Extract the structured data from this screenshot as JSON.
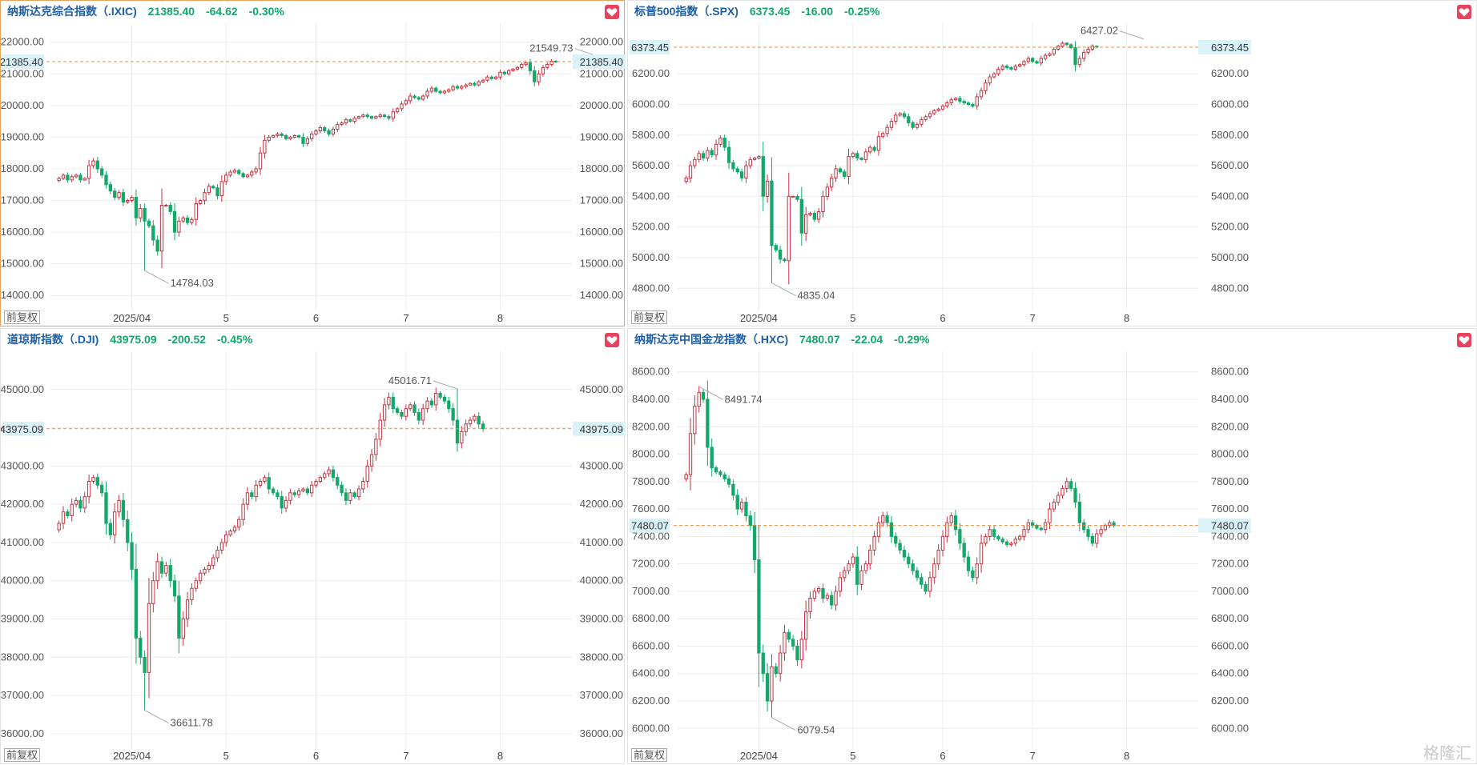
{
  "watermark": "格隆汇",
  "colors": {
    "up": "#c9333f",
    "down": "#13a86a",
    "grid": "#ececec",
    "price_line": "#e8893a",
    "price_tag": "#d9f2f7"
  },
  "buttons": {
    "restore_right": "前复权"
  },
  "panels": [
    {
      "title": "纳斯达克综合指数（.IXIC)",
      "price": "21385.40",
      "change": "-64.62",
      "pct": "-0.30%",
      "current_label": "21385.40",
      "max_label": "21549.73",
      "min_label": "14784.03",
      "x_labels": [
        "2025/04",
        "5",
        "6",
        "7",
        "8"
      ],
      "chart_data": {
        "type": "candlestick",
        "yticks": [
          22000,
          21000,
          20000,
          19000,
          18000,
          17000,
          16000,
          15000,
          14000
        ],
        "ytick_labels": [
          "22000.00",
          "21000.00",
          "20000.00",
          "19000.00",
          "18000.00",
          "17000.00",
          "16000.00",
          "15000.00",
          "14000.00"
        ],
        "ylim": [
          13500,
          22600
        ],
        "current": 21385.4,
        "max": {
          "value": 21549.73,
          "index": 126
        },
        "min": {
          "value": 14784.03,
          "index": 20
        },
        "x_label_index": [
          17,
          39,
          60,
          81,
          103
        ],
        "closes": [
          17700,
          17800,
          17650,
          17750,
          17800,
          17650,
          17700,
          18100,
          18250,
          18000,
          17800,
          17500,
          17300,
          17100,
          17250,
          16950,
          17000,
          17100,
          16450,
          16750,
          16350,
          16200,
          15750,
          15400,
          16850,
          16850,
          16650,
          16000,
          16350,
          16450,
          16300,
          16400,
          16900,
          17000,
          17250,
          17450,
          17400,
          17150,
          17600,
          17800,
          17900,
          17950,
          17850,
          17750,
          17800,
          17900,
          18000,
          18500,
          18900,
          19000,
          19050,
          19100,
          19050,
          18950,
          19000,
          19050,
          19000,
          18800,
          18950,
          19100,
          19200,
          19300,
          19200,
          19100,
          19250,
          19400,
          19450,
          19550,
          19500,
          19600,
          19650,
          19700,
          19650,
          19600,
          19650,
          19700,
          19650,
          19600,
          19800,
          19900,
          20050,
          20150,
          20300,
          20250,
          20200,
          20300,
          20450,
          20550,
          20450,
          20400,
          20450,
          20500,
          20600,
          20550,
          20600,
          20650,
          20700,
          20650,
          20750,
          20800,
          20900,
          20850,
          20900,
          21050,
          21000,
          21100,
          21150,
          21200,
          21300,
          21350,
          21100,
          20750,
          21000,
          21200,
          21300,
          21400,
          21386
        ],
        "ohlc_note": "open = previous close; candle colour up red / down green"
      }
    },
    {
      "title": "标普500指数（.SPX)",
      "price": "6373.45",
      "change": "-16.00",
      "pct": "-0.25%",
      "current_label": "6373.45",
      "max_label": "6427.02",
      "min_label": "4835.04",
      "x_labels": [
        "2025/04",
        "5",
        "6",
        "7",
        "8"
      ],
      "chart_data": {
        "type": "candlestick",
        "yticks": [
          6200,
          6000,
          5800,
          5600,
          5400,
          5200,
          5000,
          4800
        ],
        "ytick_labels": [
          "6200.00",
          "6000.00",
          "5800.00",
          "5600.00",
          "5400.00",
          "5200.00",
          "5000.00",
          "4800.00"
        ],
        "ylim": [
          4650,
          6530
        ],
        "current": 6373.45,
        "max": {
          "value": 6427.02,
          "index": 107
        },
        "min": {
          "value": 4835.04,
          "index": 20
        },
        "x_label_index": [
          17,
          39,
          60,
          81,
          103
        ],
        "closes": [
          5520,
          5600,
          5640,
          5680,
          5650,
          5700,
          5670,
          5740,
          5780,
          5720,
          5620,
          5580,
          5560,
          5520,
          5600,
          5640,
          5650,
          5660,
          5400,
          5500,
          5080,
          5050,
          4990,
          4980,
          5400,
          5400,
          5380,
          5160,
          5280,
          5290,
          5250,
          5300,
          5400,
          5460,
          5520,
          5580,
          5560,
          5530,
          5660,
          5680,
          5650,
          5640,
          5690,
          5720,
          5700,
          5790,
          5810,
          5850,
          5890,
          5930,
          5940,
          5920,
          5880,
          5850,
          5870,
          5900,
          5920,
          5940,
          5960,
          5970,
          5990,
          6010,
          6030,
          6040,
          6020,
          6010,
          6000,
          5990,
          6050,
          6090,
          6140,
          6180,
          6200,
          6230,
          6250,
          6240,
          6230,
          6250,
          6260,
          6280,
          6300,
          6280,
          6270,
          6300,
          6320,
          6330,
          6360,
          6380,
          6400,
          6390,
          6370,
          6260,
          6300,
          6340,
          6360,
          6380,
          6373
        ],
        "ohlc_note": "open = previous close; candle colour up red / down green"
      }
    },
    {
      "title": "道琼斯指数（.DJI)",
      "price": "43975.09",
      "change": "-200.52",
      "pct": "-0.45%",
      "current_label": "43975.09",
      "max_label": "45016.71",
      "min_label": "36611.78",
      "x_labels": [
        "2025/04",
        "5",
        "6",
        "7",
        "8"
      ],
      "chart_data": {
        "type": "candlestick",
        "yticks": [
          45000,
          44000,
          43000,
          42000,
          41000,
          40000,
          39000,
          38000,
          37000,
          36000
        ],
        "ytick_labels": [
          "45000.00",
          "44000.00",
          "43000.00",
          "42000.00",
          "41000.00",
          "40000.00",
          "39000.00",
          "38000.00",
          "37000.00",
          "36000.00"
        ],
        "ylim": [
          35600,
          46000
        ],
        "current": 43975.09,
        "max": {
          "value": 45016.71,
          "index": 93
        },
        "min": {
          "value": 36611.78,
          "index": 20
        },
        "x_label_index": [
          17,
          39,
          60,
          81,
          103
        ],
        "closes": [
          41500,
          41800,
          41700,
          42000,
          42100,
          41900,
          42200,
          42600,
          42700,
          42500,
          42300,
          41500,
          41200,
          41800,
          42100,
          41600,
          41000,
          40300,
          38500,
          38000,
          37600,
          39400,
          40000,
          40500,
          40200,
          40400,
          40000,
          39600,
          38500,
          39000,
          39500,
          39800,
          40000,
          40200,
          40300,
          40400,
          40600,
          40800,
          41000,
          41200,
          41300,
          41400,
          41600,
          42000,
          42300,
          42200,
          42500,
          42600,
          42700,
          42400,
          42300,
          42200,
          41900,
          42100,
          42300,
          42250,
          42350,
          42400,
          42300,
          42500,
          42600,
          42700,
          42800,
          42900,
          42700,
          42500,
          42300,
          42100,
          42300,
          42200,
          42400,
          42600,
          43000,
          43300,
          43700,
          44200,
          44600,
          44800,
          44500,
          44400,
          44300,
          44500,
          44600,
          44400,
          44200,
          44500,
          44700,
          44600,
          44900,
          44800,
          44700,
          44500,
          44200,
          43600,
          43900,
          44100,
          44200,
          44300,
          44100,
          43975
        ],
        "ohlc_note": "open = previous close; candle colour up red / down green"
      }
    },
    {
      "title": "纳斯达克中国金龙指数（.HXC)",
      "price": "7480.07",
      "change": "-22.04",
      "pct": "-0.29%",
      "current_label": "7480.07",
      "max_label": "8491.74",
      "min_label": "6079.54",
      "x_labels": [
        "2025/04",
        "5",
        "6",
        "7",
        "8"
      ],
      "chart_data": {
        "type": "candlestick",
        "yticks": [
          8600,
          8400,
          8200,
          8000,
          7800,
          7600,
          7400,
          7200,
          7000,
          6800,
          6600,
          6400,
          6200,
          6000
        ],
        "ytick_labels": [
          "8600.00",
          "8400.00",
          "8200.00",
          "8000.00",
          "7800.00",
          "7600.00",
          "7400.00",
          "7200.00",
          "7000.00",
          "6800.00",
          "6600.00",
          "6400.00",
          "6200.00",
          "6000.00"
        ],
        "ylim": [
          5850,
          8750
        ],
        "current": 7480.07,
        "max": {
          "value": 8491.74,
          "index": 3
        },
        "min": {
          "value": 6079.54,
          "index": 20
        },
        "x_label_index": [
          17,
          39,
          60,
          81,
          103
        ],
        "closes": [
          7850,
          8150,
          8350,
          8450,
          8400,
          8050,
          7900,
          7870,
          7850,
          7820,
          7780,
          7700,
          7600,
          7650,
          7550,
          7480,
          7230,
          6550,
          6400,
          6200,
          6450,
          6400,
          6550,
          6700,
          6650,
          6600,
          6500,
          6650,
          6850,
          6950,
          7000,
          7020,
          6950,
          6970,
          6900,
          7000,
          7100,
          7150,
          7200,
          7250,
          7050,
          7150,
          7200,
          7300,
          7400,
          7500,
          7550,
          7500,
          7400,
          7350,
          7300,
          7250,
          7200,
          7150,
          7100,
          7050,
          7000,
          7100,
          7200,
          7300,
          7400,
          7500,
          7550,
          7450,
          7350,
          7250,
          7150,
          7100,
          7200,
          7350,
          7400,
          7450,
          7400,
          7380,
          7360,
          7340,
          7350,
          7380,
          7400,
          7450,
          7500,
          7480,
          7460,
          7450,
          7500,
          7600,
          7650,
          7700,
          7750,
          7800,
          7750,
          7650,
          7500,
          7450,
          7400,
          7350,
          7420,
          7450,
          7480,
          7500,
          7480
        ],
        "ohlc_note": "open = previous close; candle colour up red / down green"
      }
    }
  ]
}
